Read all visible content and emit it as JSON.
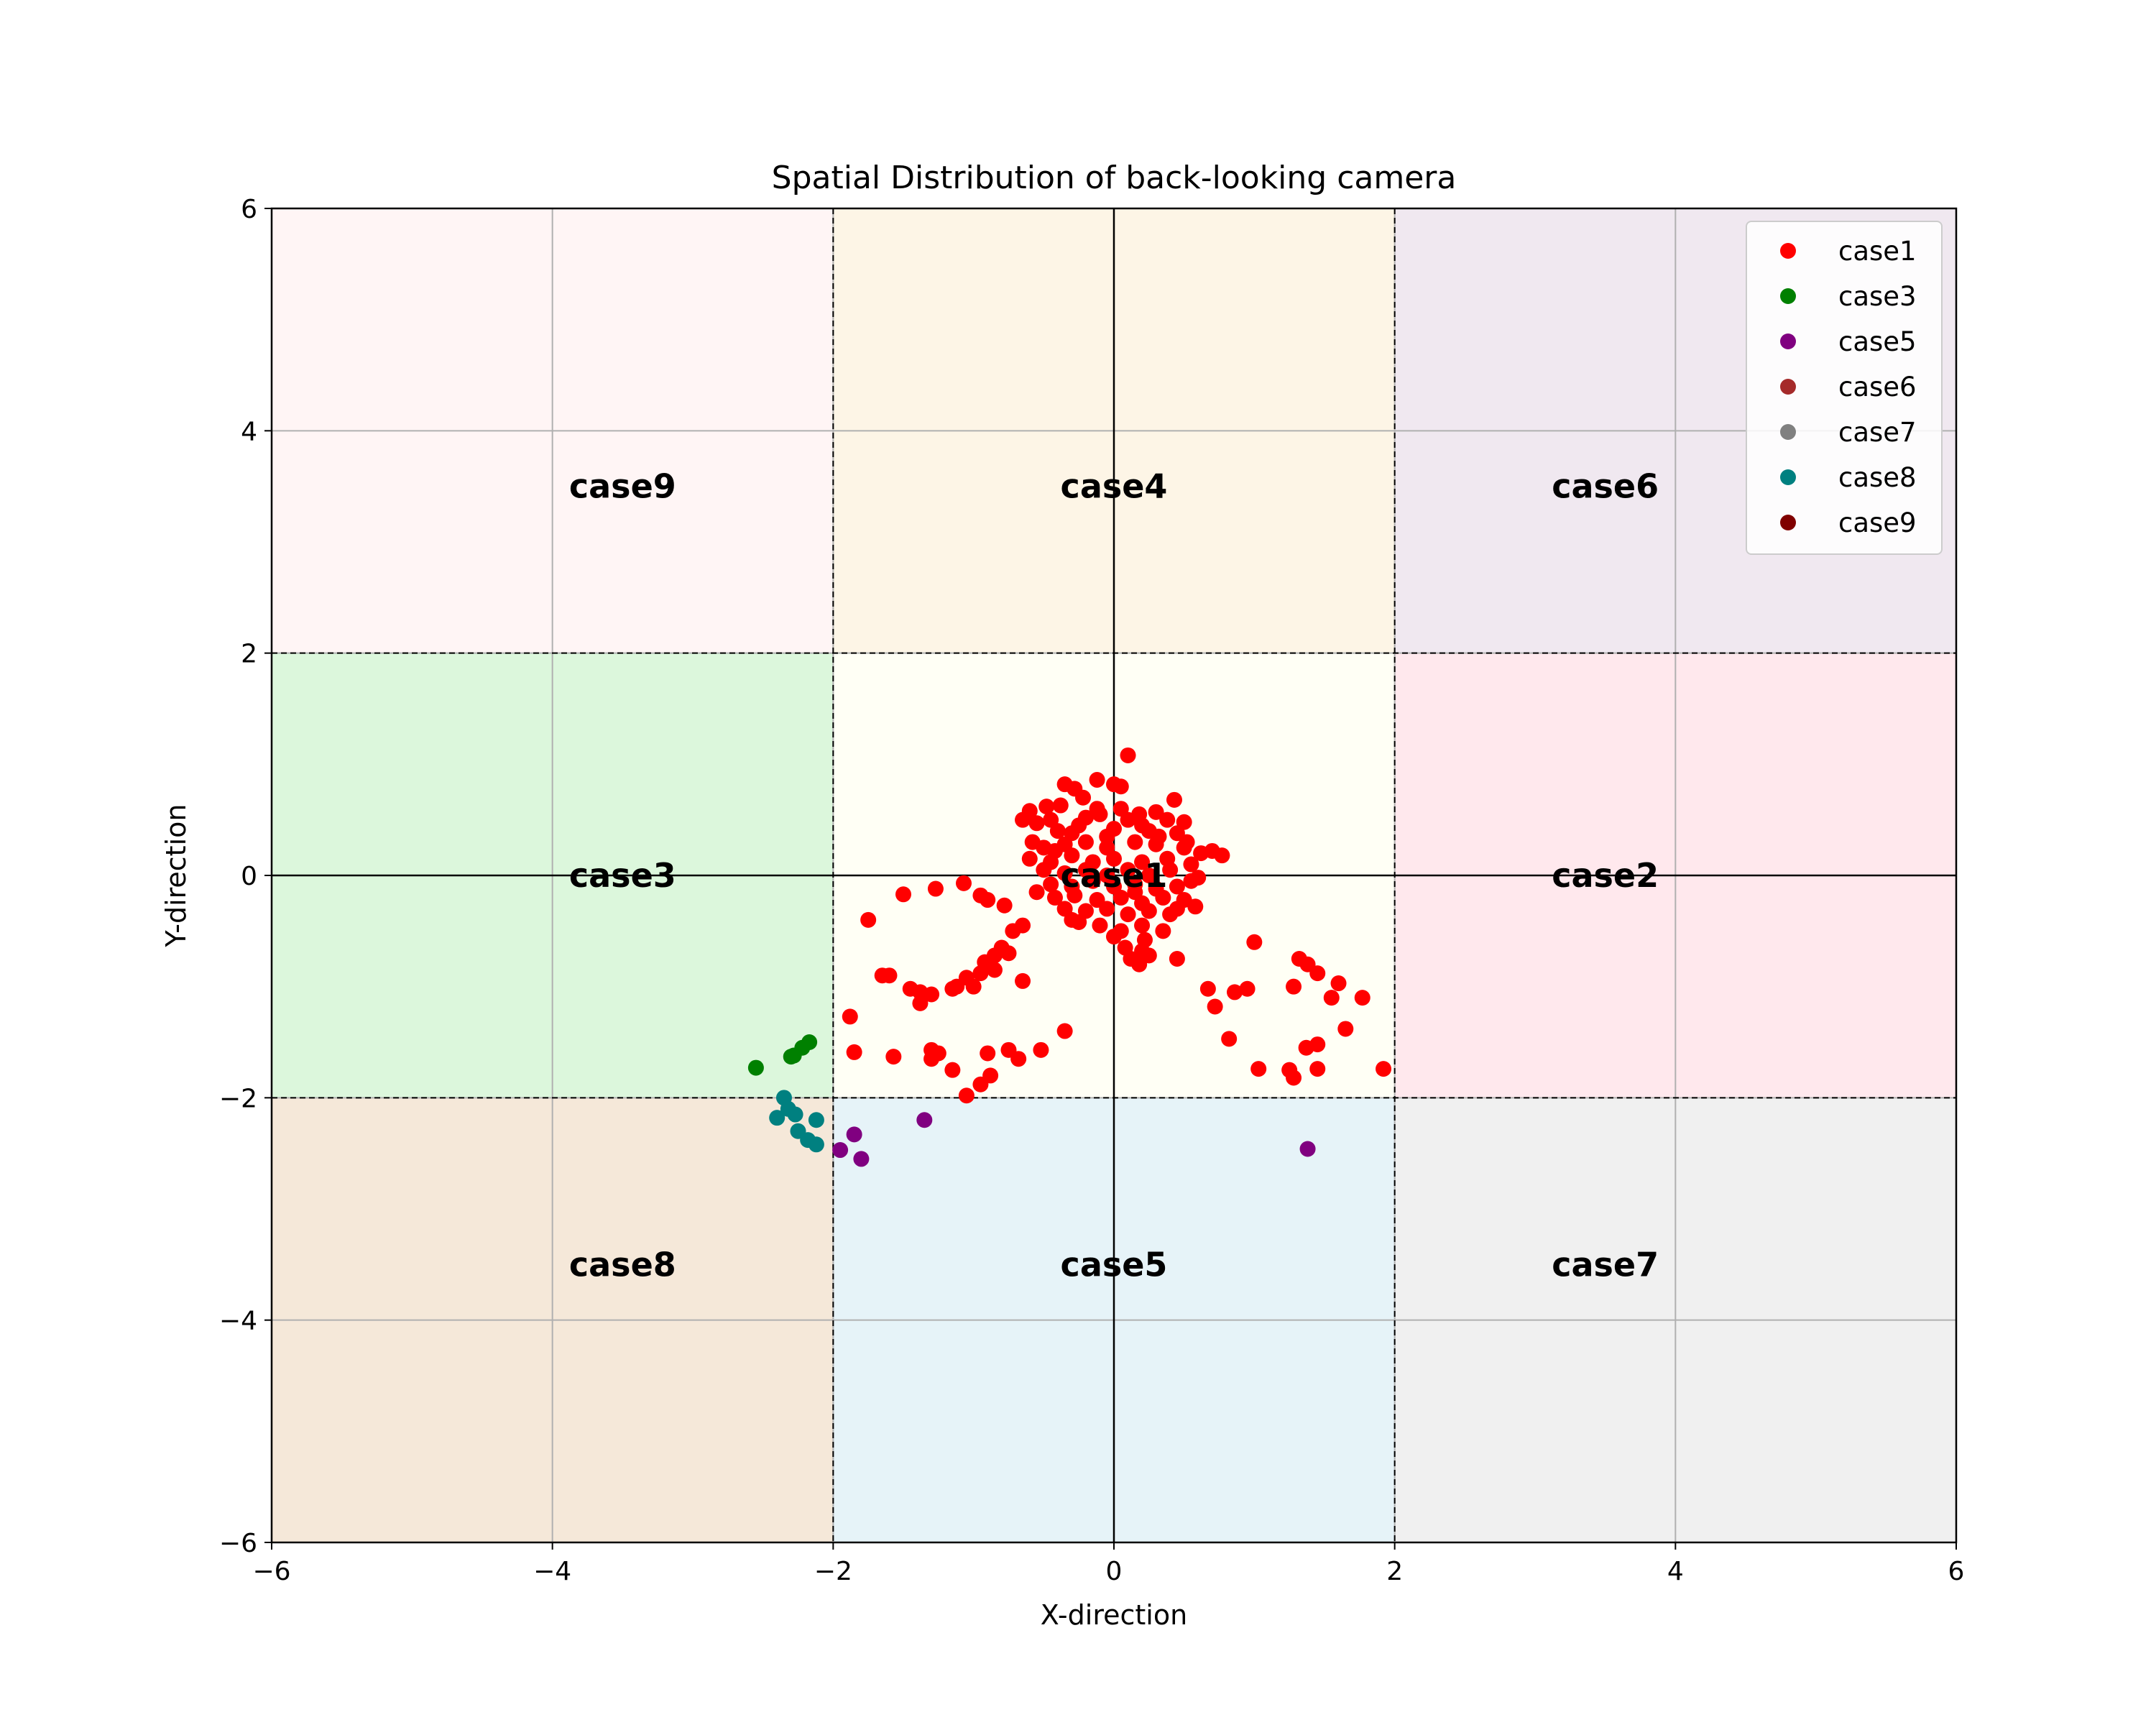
{
  "chart_data": {
    "type": "scatter",
    "title": "Spatial Distribution of back-looking camera",
    "xlabel": "X-direction",
    "ylabel": "Y-direction",
    "xlim": [
      -6,
      6
    ],
    "ylim": [
      -6,
      6
    ],
    "xticks": [
      -6,
      -4,
      -2,
      0,
      2,
      4,
      6
    ],
    "yticks": [
      -6,
      -4,
      -2,
      0,
      2,
      4,
      6
    ],
    "xtick_labels": [
      "−6",
      "−4",
      "−2",
      "0",
      "2",
      "4",
      "6"
    ],
    "ytick_labels": [
      "−6",
      "−4",
      "−2",
      "0",
      "2",
      "4",
      "6"
    ],
    "grid": true,
    "legend_position": "upper right",
    "regions": [
      {
        "name": "case9",
        "x": [
          -6,
          -2
        ],
        "y": [
          2,
          6
        ],
        "color": "#fff5f5",
        "label_at": [
          -3.5,
          3.5
        ]
      },
      {
        "name": "case4",
        "x": [
          -2,
          2
        ],
        "y": [
          2,
          6
        ],
        "color": "#fdf5e6",
        "label_at": [
          0,
          3.5
        ]
      },
      {
        "name": "case6",
        "x": [
          2,
          6
        ],
        "y": [
          2,
          6
        ],
        "color": "#f0e8f0",
        "label_at": [
          3.5,
          3.5
        ]
      },
      {
        "name": "case3",
        "x": [
          -6,
          -2
        ],
        "y": [
          -2,
          2
        ],
        "color": "#dcf7dc",
        "label_at": [
          -3.5,
          0
        ]
      },
      {
        "name": "case1",
        "x": [
          -2,
          2
        ],
        "y": [
          -2,
          2
        ],
        "color": "#fffff5",
        "label_at": [
          0,
          0
        ]
      },
      {
        "name": "case2",
        "x": [
          2,
          6
        ],
        "y": [
          -2,
          2
        ],
        "color": "#ffe8ed",
        "label_at": [
          3.5,
          0
        ]
      },
      {
        "name": "case8",
        "x": [
          -6,
          -2
        ],
        "y": [
          -6,
          -2
        ],
        "color": "#f5e8d9",
        "label_at": [
          -3.5,
          -3.5
        ]
      },
      {
        "name": "case5",
        "x": [
          -2,
          2
        ],
        "y": [
          -6,
          -2
        ],
        "color": "#e6f3f8",
        "label_at": [
          0,
          -3.5
        ]
      },
      {
        "name": "case7",
        "x": [
          2,
          6
        ],
        "y": [
          -6,
          -2
        ],
        "color": "#f0f0f0",
        "label_at": [
          3.5,
          -3.5
        ]
      }
    ],
    "series": [
      {
        "name": "case1",
        "color": "#ff0000",
        "points": [
          [
            0.1,
            1.08
          ],
          [
            -0.12,
            0.86
          ],
          [
            0.0,
            0.82
          ],
          [
            -0.35,
            0.82
          ],
          [
            -0.28,
            0.78
          ],
          [
            0.05,
            0.8
          ],
          [
            -0.22,
            0.7
          ],
          [
            0.43,
            0.68
          ],
          [
            -0.6,
            0.58
          ],
          [
            -0.48,
            0.62
          ],
          [
            -0.38,
            0.63
          ],
          [
            -0.12,
            0.6
          ],
          [
            0.3,
            0.57
          ],
          [
            0.18,
            0.55
          ],
          [
            -0.65,
            0.5
          ],
          [
            -0.55,
            0.47
          ],
          [
            -0.45,
            0.5
          ],
          [
            -0.2,
            0.52
          ],
          [
            0.1,
            0.5
          ],
          [
            0.38,
            0.5
          ],
          [
            0.5,
            0.48
          ],
          [
            -0.4,
            0.4
          ],
          [
            -0.3,
            0.38
          ],
          [
            0.0,
            0.42
          ],
          [
            0.25,
            0.4
          ],
          [
            0.45,
            0.38
          ],
          [
            -0.58,
            0.3
          ],
          [
            -0.5,
            0.25
          ],
          [
            -0.35,
            0.28
          ],
          [
            -0.2,
            0.3
          ],
          [
            -0.05,
            0.25
          ],
          [
            0.15,
            0.3
          ],
          [
            0.3,
            0.28
          ],
          [
            0.5,
            0.25
          ],
          [
            0.7,
            0.22
          ],
          [
            0.62,
            0.2
          ],
          [
            0.77,
            0.18
          ],
          [
            -0.6,
            0.15
          ],
          [
            -0.45,
            0.12
          ],
          [
            -0.3,
            0.18
          ],
          [
            -0.15,
            0.12
          ],
          [
            0.0,
            0.15
          ],
          [
            0.2,
            0.12
          ],
          [
            0.38,
            0.15
          ],
          [
            0.55,
            0.1
          ],
          [
            -0.5,
            0.05
          ],
          [
            -0.35,
            0.02
          ],
          [
            -0.2,
            0.05
          ],
          [
            -0.05,
            0.0
          ],
          [
            0.1,
            0.05
          ],
          [
            0.25,
            0.0
          ],
          [
            0.4,
            0.05
          ],
          [
            0.6,
            -0.02
          ],
          [
            -0.45,
            -0.08
          ],
          [
            -0.3,
            -0.1
          ],
          [
            -0.15,
            -0.05
          ],
          [
            0.0,
            -0.1
          ],
          [
            0.15,
            -0.08
          ],
          [
            0.3,
            -0.12
          ],
          [
            0.45,
            -0.1
          ],
          [
            0.55,
            -0.05
          ],
          [
            -0.42,
            -0.2
          ],
          [
            -0.28,
            -0.18
          ],
          [
            -0.12,
            -0.22
          ],
          [
            0.05,
            -0.2
          ],
          [
            0.2,
            -0.25
          ],
          [
            0.35,
            -0.2
          ],
          [
            0.5,
            -0.22
          ],
          [
            0.58,
            -0.28
          ],
          [
            -0.35,
            -0.3
          ],
          [
            -0.2,
            -0.32
          ],
          [
            -0.05,
            -0.3
          ],
          [
            0.1,
            -0.35
          ],
          [
            0.25,
            -0.32
          ],
          [
            0.4,
            -0.35
          ],
          [
            -0.25,
            -0.42
          ],
          [
            -0.1,
            -0.45
          ],
          [
            0.05,
            -0.5
          ],
          [
            0.2,
            -0.45
          ],
          [
            0.35,
            -0.5
          ],
          [
            0.0,
            -0.55
          ],
          [
            0.22,
            -0.58
          ],
          [
            0.08,
            -0.65
          ],
          [
            0.2,
            -0.68
          ],
          [
            0.12,
            -0.75
          ],
          [
            0.25,
            -0.72
          ],
          [
            0.18,
            -0.8
          ],
          [
            -0.1,
            0.55
          ],
          [
            0.05,
            0.6
          ],
          [
            0.2,
            0.45
          ],
          [
            -0.25,
            0.45
          ],
          [
            0.32,
            0.35
          ],
          [
            -0.42,
            0.22
          ],
          [
            0.45,
            -0.3
          ],
          [
            -0.3,
            -0.4
          ],
          [
            0.15,
            -0.15
          ],
          [
            -0.05,
            0.35
          ],
          [
            -0.55,
            -0.15
          ],
          [
            0.52,
            0.3
          ],
          [
            -1.07,
            -0.07
          ],
          [
            -1.27,
            -0.12
          ],
          [
            -1.5,
            -0.17
          ],
          [
            -0.95,
            -0.18
          ],
          [
            -0.9,
            -0.22
          ],
          [
            -0.78,
            -0.27
          ],
          [
            -1.75,
            -0.4
          ],
          [
            -0.65,
            -0.45
          ],
          [
            -0.72,
            -0.5
          ],
          [
            -0.8,
            -0.65
          ],
          [
            -0.75,
            -0.7
          ],
          [
            -0.85,
            -0.72
          ],
          [
            -0.92,
            -0.78
          ],
          [
            -0.85,
            -0.85
          ],
          [
            -0.95,
            -0.88
          ],
          [
            -1.05,
            -0.92
          ],
          [
            -1.65,
            -0.9
          ],
          [
            -1.6,
            -0.9
          ],
          [
            -1.12,
            -1.0
          ],
          [
            -1.15,
            -1.02
          ],
          [
            -1.45,
            -1.02
          ],
          [
            -1.38,
            -1.05
          ],
          [
            -1.3,
            -1.07
          ],
          [
            -1.38,
            -1.15
          ],
          [
            -0.65,
            -0.95
          ],
          [
            -1.0,
            -1.0
          ],
          [
            -1.88,
            -1.27
          ],
          [
            -1.85,
            -1.59
          ],
          [
            -1.57,
            -1.63
          ],
          [
            -1.3,
            -1.57
          ],
          [
            -1.25,
            -1.6
          ],
          [
            -1.3,
            -1.65
          ],
          [
            -1.15,
            -1.75
          ],
          [
            -0.9,
            -1.6
          ],
          [
            -0.75,
            -1.57
          ],
          [
            -0.68,
            -1.65
          ],
          [
            -0.88,
            -1.8
          ],
          [
            -0.95,
            -1.88
          ],
          [
            -1.05,
            -1.98
          ],
          [
            -0.52,
            -1.57
          ],
          [
            -0.35,
            -1.4
          ],
          [
            0.45,
            -0.75
          ],
          [
            0.67,
            -1.02
          ],
          [
            0.72,
            -1.18
          ],
          [
            0.82,
            -1.47
          ],
          [
            0.86,
            -1.05
          ],
          [
            0.95,
            -1.02
          ],
          [
            1.0,
            -0.6
          ],
          [
            1.03,
            -1.74
          ],
          [
            1.28,
            -1.0
          ],
          [
            1.32,
            -0.75
          ],
          [
            1.38,
            -0.8
          ],
          [
            1.45,
            -0.88
          ],
          [
            1.55,
            -1.1
          ],
          [
            1.6,
            -0.97
          ],
          [
            1.65,
            -1.38
          ],
          [
            1.45,
            -1.52
          ],
          [
            1.37,
            -1.55
          ],
          [
            1.25,
            -1.75
          ],
          [
            1.28,
            -1.82
          ],
          [
            1.45,
            -1.74
          ],
          [
            1.77,
            -1.1
          ],
          [
            1.92,
            -1.74
          ]
        ]
      },
      {
        "name": "case3",
        "color": "#008000",
        "points": [
          [
            -2.55,
            -1.73
          ],
          [
            -2.3,
            -1.63
          ],
          [
            -2.28,
            -1.62
          ],
          [
            -2.22,
            -1.55
          ],
          [
            -2.17,
            -1.5
          ]
        ]
      },
      {
        "name": "case5",
        "color": "#800080",
        "points": [
          [
            -1.35,
            -2.2
          ],
          [
            -1.85,
            -2.33
          ],
          [
            -1.95,
            -2.47
          ],
          [
            -1.8,
            -2.55
          ],
          [
            1.38,
            -2.46
          ]
        ]
      },
      {
        "name": "case6",
        "color": "#a52a2a",
        "points": []
      },
      {
        "name": "case7",
        "color": "#808080",
        "points": []
      },
      {
        "name": "case8",
        "color": "#008080",
        "points": [
          [
            -2.35,
            -2.0
          ],
          [
            -2.32,
            -2.1
          ],
          [
            -2.27,
            -2.15
          ],
          [
            -2.4,
            -2.18
          ],
          [
            -2.12,
            -2.2
          ],
          [
            -2.25,
            -2.3
          ],
          [
            -2.18,
            -2.38
          ],
          [
            -2.12,
            -2.42
          ]
        ]
      },
      {
        "name": "case9",
        "color": "#800000",
        "points": []
      }
    ]
  }
}
